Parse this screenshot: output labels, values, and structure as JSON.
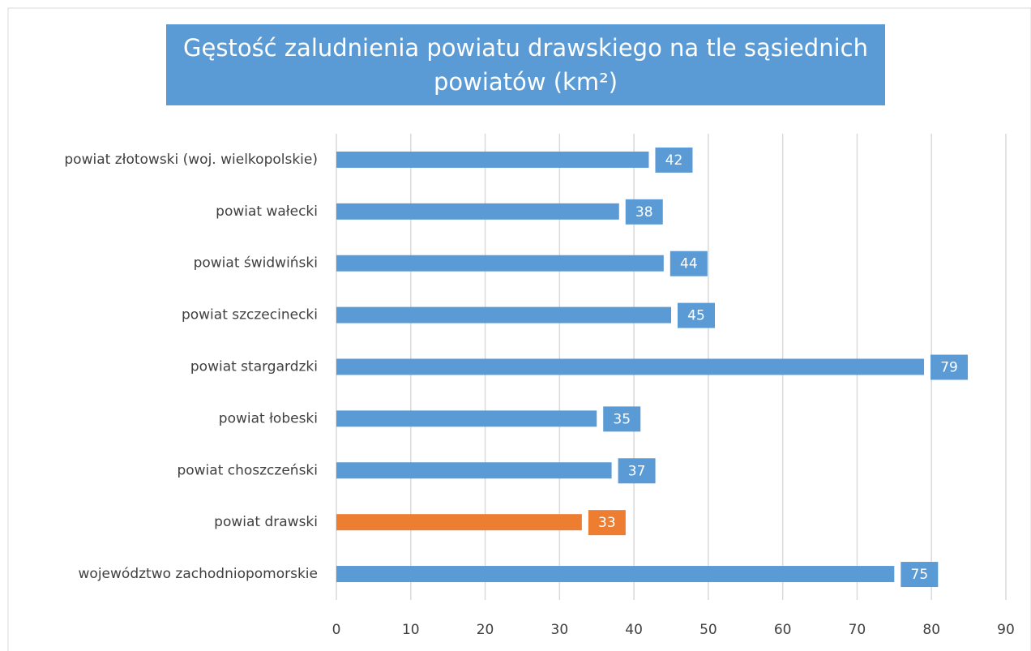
{
  "chart_data": {
    "type": "hbar",
    "title": "Gęstość zaludnienia powiatu drawskiego na tle sąsiednich powiatów (km²)",
    "categories": [
      "powiat złotowski (woj. wielkopolskie)",
      "powiat wałecki",
      "powiat świdwiński",
      "powiat szczecinecki",
      "powiat stargardzki",
      "powiat łobeski",
      "powiat choszczeński",
      "powiat drawski",
      "województwo zachodniopomorskie"
    ],
    "values": [
      42,
      38,
      44,
      45,
      79,
      35,
      37,
      33,
      75
    ],
    "colors": [
      "#5b9bd5",
      "#5b9bd5",
      "#5b9bd5",
      "#5b9bd5",
      "#5b9bd5",
      "#5b9bd5",
      "#5b9bd5",
      "#ed7d31",
      "#5b9bd5"
    ],
    "xlim": [
      0,
      90
    ],
    "xticks": [
      0,
      10,
      20,
      30,
      40,
      50,
      60,
      70,
      80,
      90
    ],
    "grid": true
  }
}
